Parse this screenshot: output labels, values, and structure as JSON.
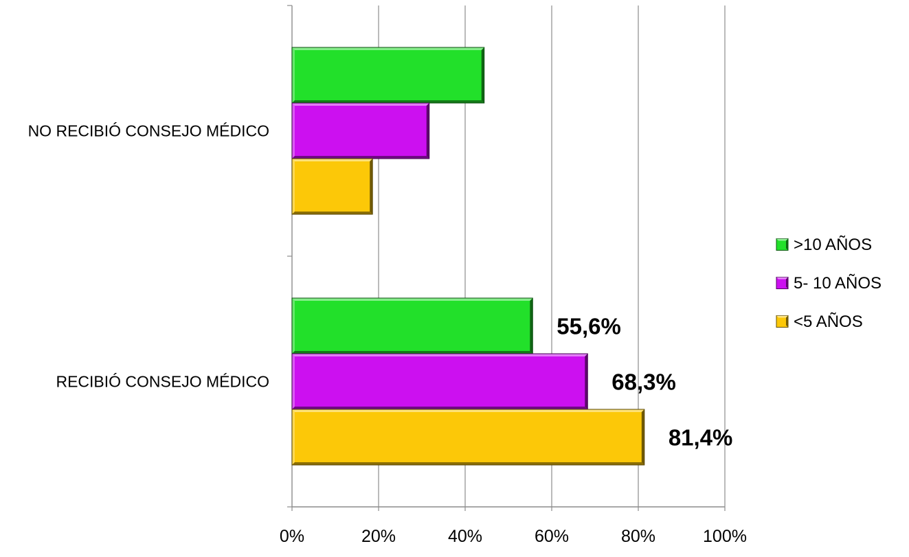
{
  "chart_data": {
    "type": "bar",
    "orientation": "horizontal",
    "categories": [
      "NO RECIBIÓ CONSEJO MÉDICO",
      "RECIBIÓ CONSEJO MÉDICO"
    ],
    "series": [
      {
        "name": ">10 AÑOS",
        "values": [
          44.4,
          55.6
        ],
        "color": "#22e02a",
        "data_labels": [
          "",
          "55,6%"
        ]
      },
      {
        "name": "5- 10 AÑOS",
        "values": [
          31.7,
          68.3
        ],
        "color": "#cc10f0",
        "data_labels": [
          "",
          "68,3%"
        ]
      },
      {
        "name": "<5 AÑOS",
        "values": [
          18.6,
          81.4
        ],
        "color": "#fcc808",
        "data_labels": [
          "",
          "81,4%"
        ]
      }
    ],
    "x_ticks": [
      "0%",
      "20%",
      "40%",
      "60%",
      "80%",
      "100%"
    ],
    "xlim": [
      0,
      100
    ],
    "grid": true,
    "legend_position": "right"
  }
}
